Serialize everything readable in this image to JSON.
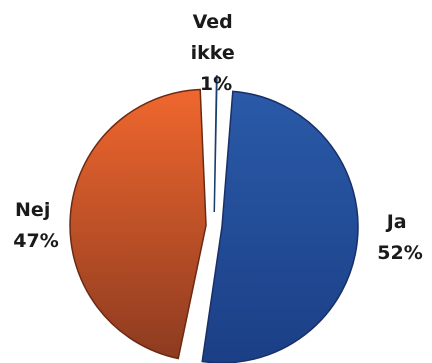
{
  "chart_data": {
    "type": "pie",
    "slices": [
      {
        "label_lines": [
          "Ja",
          "52%"
        ],
        "value": 52,
        "color": "#2a5aa8",
        "color_dark": "#1b3f86",
        "outline": "#1a2f66"
      },
      {
        "label_lines": [
          "Nej",
          "47%"
        ],
        "value": 47,
        "color": "#f0672e",
        "color_dark": "#8d3b20",
        "outline": "#6b2a14"
      },
      {
        "label_lines": [
          "Ved",
          "ikke",
          "1%"
        ],
        "value": 1,
        "color": "#2f78c2",
        "color_dark": "#1e5a99",
        "outline": "#1a3f6e"
      }
    ],
    "exploded": true,
    "legend": "none"
  }
}
